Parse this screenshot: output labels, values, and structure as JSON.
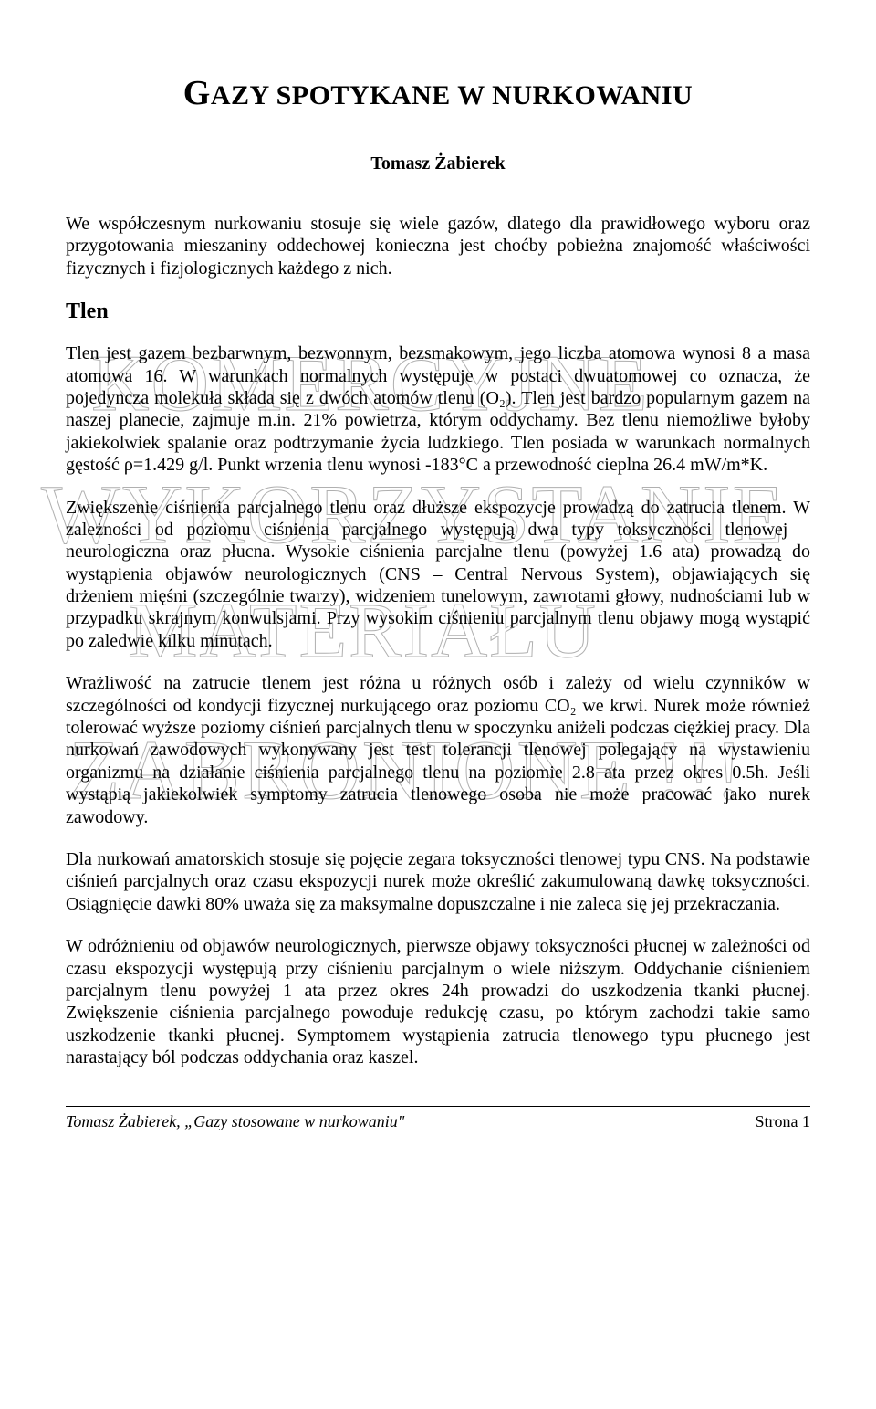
{
  "title": {
    "first_letter": "G",
    "rest": "AZY SPOTYKANE W NURKOWANIU"
  },
  "author": "Tomasz Żabierek",
  "watermarks": {
    "w1": "KOMERCYJNE",
    "w2": "WYKORZYSTANIE",
    "w3": "MATERIAŁU",
    "w4": "ZABRONIONE !!!"
  },
  "intro": "We współczesnym nurkowaniu stosuje się wiele gazów, dlatego dla prawidłowego wyboru oraz przygotowania mieszaniny oddechowej konieczna jest choćby pobieżna znajomość właściwości fizycznych i fizjologicznych każdego z nich.",
  "section_heading": "Tlen",
  "p1": "Tlen jest gazem bezbarwnym, bezwonnym, bezsmakowym, jego liczba atomowa wynosi 8 a masa atomowa 16. W warunkach normalnych występuje w postaci dwuatomowej co oznacza, że pojedyncza molekuła składa się z dwóch atomów tlenu (O₂). Tlen jest bardzo popularnym gazem na naszej planecie, zajmuje m.in. 21% powietrza, którym oddychamy. Bez tlenu niemożliwe byłoby jakiekolwiek spalanie oraz podtrzymanie życia ludzkiego. Tlen posiada w warunkach normalnych gęstość ρ=1.429 g/l. Punkt wrzenia tlenu wynosi -183°C a przewodność cieplna 26.4 mW/m*K.",
  "p2": "Zwiększenie ciśnienia parcjalnego tlenu oraz dłuższe ekspozycje prowadzą do zatrucia tlenem. W zależności od poziomu ciśnienia parcjalnego występują dwa typy toksyczności tlenowej – neurologiczna oraz płucna. Wysokie ciśnienia parcjalne tlenu (powyżej 1.6 ata) prowadzą do wystąpienia objawów neurologicznych (CNS – Central Nervous System), objawiających się drżeniem mięśni (szczególnie twarzy), widzeniem tunelowym, zawrotami głowy, nudnościami lub w przypadku skrajnym konwulsjami. Przy wysokim ciśnieniu parcjalnym tlenu objawy mogą wystąpić po zaledwie kilku minutach.",
  "p3": "Wrażliwość na zatrucie tlenem jest różna u różnych osób i zależy od wielu czynników w szczególności od kondycji fizycznej nurkującego oraz poziomu CO₂ we krwi. Nurek może również tolerować wyższe poziomy ciśnień parcjalnych tlenu w spoczynku aniżeli podczas ciężkiej pracy. Dla nurkowań zawodowych wykonywany jest test tolerancji tlenowej polegający na wystawieniu organizmu na działanie ciśnienia parcjalnego tlenu na poziomie 2.8 ata przez okres 0.5h. Jeśli wystąpią jakiekolwiek symptomy zatrucia tlenowego osoba nie może pracować jako nurek zawodowy.",
  "p4": "Dla nurkowań amatorskich stosuje się pojęcie zegara toksyczności tlenowej typu CNS. Na podstawie ciśnień parcjalnych oraz czasu ekspozycji nurek może określić zakumulowaną dawkę toksyczności. Osiągnięcie dawki 80% uważa się za maksymalne dopuszczalne i nie zaleca się jej przekraczania.",
  "p5": "W odróżnieniu od objawów neurologicznych, pierwsze objawy toksyczności płucnej w zależności od czasu ekspozycji występują przy ciśnieniu parcjalnym o wiele niższym. Oddychanie ciśnieniem parcjalnym tlenu powyżej 1 ata przez okres 24h prowadzi do uszkodzenia tkanki płucnej. Zwiększenie ciśnienia parcjalnego powoduje redukcję czasu, po którym zachodzi takie samo uszkodzenie tkanki płucnej. Symptomem wystąpienia zatrucia tlenowego typu płucnego jest narastający ból podczas oddychania oraz kaszel.",
  "footer": {
    "left": "Tomasz Żabierek, „Gazy stosowane w nurkowaniu\"",
    "right": "Strona 1"
  }
}
